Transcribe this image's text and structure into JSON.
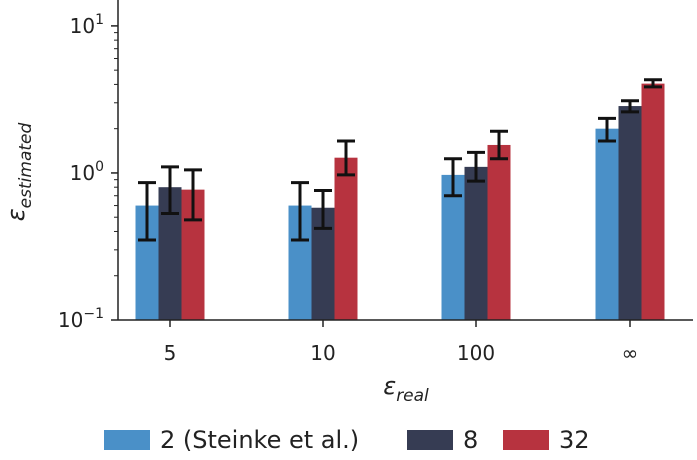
{
  "chart_data": {
    "type": "bar",
    "title": "",
    "xlabel": {
      "symbol": "ε",
      "subscript": "real"
    },
    "ylabel": {
      "symbol": "ε",
      "subscript": "estimated"
    },
    "categories": [
      "5",
      "10",
      "100",
      "∞"
    ],
    "yscale": "log",
    "ylim": [
      0.1,
      15
    ],
    "yticks": [
      {
        "value": 0.1,
        "base": "10",
        "exp": "−1"
      },
      {
        "value": 1,
        "base": "10",
        "exp": "0"
      },
      {
        "value": 10,
        "base": "10",
        "exp": "1"
      }
    ],
    "series": [
      {
        "name": "2 (Steinke et al.)",
        "color": "#4a90c8",
        "values": [
          0.6,
          0.6,
          0.97,
          2.0
        ],
        "error_low": [
          0.35,
          0.35,
          0.7,
          1.65
        ],
        "error_high": [
          0.86,
          0.86,
          1.25,
          2.35
        ]
      },
      {
        "name": "8",
        "color": "#363c53",
        "values": [
          0.8,
          0.58,
          1.1,
          2.85
        ],
        "error_low": [
          0.53,
          0.42,
          0.88,
          2.6
        ],
        "error_high": [
          1.1,
          0.76,
          1.38,
          3.1
        ]
      },
      {
        "name": "32",
        "color": "#b7333f",
        "values": [
          0.77,
          1.27,
          1.55,
          4.05
        ],
        "error_low": [
          0.48,
          0.97,
          1.25,
          3.85
        ],
        "error_high": [
          1.05,
          1.65,
          1.92,
          4.3
        ]
      }
    ],
    "legend": {
      "position": "bottom",
      "orientation": "horizontal"
    },
    "grid": false
  }
}
